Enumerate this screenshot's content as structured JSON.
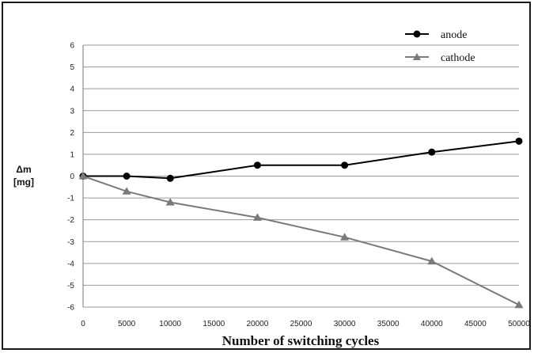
{
  "chart_data": {
    "type": "line",
    "title": "",
    "xlabel": "Number of switching cycles",
    "ylabel_line1": "Δm",
    "ylabel_line2": "[mg]",
    "xlim": [
      0,
      50000
    ],
    "ylim": [
      -6,
      6
    ],
    "x_ticks": [
      0,
      5000,
      10000,
      15000,
      20000,
      25000,
      30000,
      35000,
      40000,
      45000,
      50000
    ],
    "y_ticks": [
      6,
      5,
      4,
      3,
      2,
      1,
      0,
      -1,
      -2,
      -3,
      -4,
      -5,
      -6
    ],
    "grid": "horizontal",
    "legend_position": "top-right",
    "series": [
      {
        "name": "anode",
        "color": "#000000",
        "marker": "circle",
        "x": [
          0,
          5000,
          10000,
          20000,
          30000,
          40000,
          50000
        ],
        "y": [
          0,
          0,
          -0.1,
          0.5,
          0.5,
          1.1,
          1.6
        ]
      },
      {
        "name": "cathode",
        "color": "#7a7a7a",
        "marker": "triangle",
        "x": [
          0,
          5000,
          10000,
          20000,
          30000,
          40000,
          50000
        ],
        "y": [
          0,
          -0.7,
          -1.2,
          -1.9,
          -2.8,
          -3.9,
          -5.9
        ]
      }
    ]
  }
}
